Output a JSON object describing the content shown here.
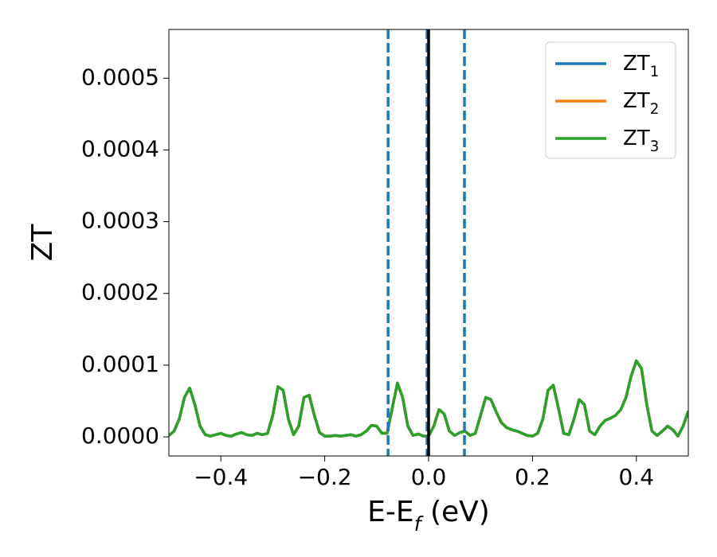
{
  "chart_data": {
    "type": "line",
    "xlabel": "E-Ef (eV)",
    "ylabel": "ZT",
    "xlim": [
      -0.5,
      0.5
    ],
    "ylim": [
      -2.66e-05,
      0.000568
    ],
    "xticks": [
      {
        "value": -0.4,
        "label": "−0.4"
      },
      {
        "value": -0.2,
        "label": "−0.2"
      },
      {
        "value": 0.0,
        "label": "0.0"
      },
      0.2,
      0.4
    ],
    "yticks": [
      {
        "value": 0,
        "label": "0.0000"
      },
      {
        "value": 0.0001,
        "label": "0.0001"
      },
      {
        "value": 0.0002,
        "label": "0.0002"
      },
      {
        "value": 0.0003,
        "label": "0.0003"
      },
      {
        "value": 0.0004,
        "label": "0.0004"
      },
      {
        "value": 0.0005,
        "label": "0.0005"
      }
    ],
    "legend": "upper right",
    "vlines": [
      {
        "x": -0.078,
        "color": "#1f77b4",
        "dashed": true
      },
      {
        "x": -0.003,
        "color": "#1f77b4",
        "dashed": true
      },
      {
        "x": 0.069,
        "color": "#1f77b4",
        "dashed": true
      },
      {
        "x": 0.0,
        "color": "#000000",
        "dashed": false
      }
    ],
    "x": [
      -0.5,
      -0.49,
      -0.48,
      -0.47,
      -0.46,
      -0.45,
      -0.44,
      -0.43,
      -0.42,
      -0.41,
      -0.4,
      -0.39,
      -0.38,
      -0.37,
      -0.36,
      -0.35,
      -0.34,
      -0.33,
      -0.32,
      -0.31,
      -0.3,
      -0.29,
      -0.28,
      -0.27,
      -0.26,
      -0.25,
      -0.24,
      -0.23,
      -0.22,
      -0.21,
      -0.2,
      -0.19,
      -0.18,
      -0.17,
      -0.16,
      -0.15,
      -0.14,
      -0.13,
      -0.12,
      -0.11,
      -0.1,
      -0.09,
      -0.08,
      -0.07,
      -0.06,
      -0.05,
      -0.04,
      -0.03,
      -0.02,
      -0.01,
      0,
      0.01,
      0.02,
      0.03,
      0.04,
      0.05,
      0.06,
      0.07,
      0.08,
      0.09,
      0.1,
      0.11,
      0.12,
      0.13,
      0.14,
      0.15,
      0.16,
      0.17,
      0.18,
      0.19,
      0.2,
      0.21,
      0.22,
      0.23,
      0.24,
      0.25,
      0.26,
      0.27,
      0.28,
      0.29,
      0.3,
      0.31,
      0.32,
      0.33,
      0.34,
      0.35,
      0.36,
      0.37,
      0.38,
      0.39,
      0.4,
      0.41,
      0.42,
      0.43,
      0.44,
      0.45,
      0.46,
      0.47,
      0.48,
      0.49,
      0.5
    ],
    "series": [
      {
        "name": "ZT1",
        "color": "#1f77b4",
        "values": [
          2e-06,
          8e-06,
          2.5e-05,
          5.5e-05,
          6.8e-05,
          4.5e-05,
          1.5e-05,
          3e-06,
          1e-06,
          3e-06,
          5e-06,
          2e-06,
          1e-06,
          4e-06,
          6e-06,
          3e-06,
          2e-06,
          5e-06,
          3e-06,
          5e-06,
          3e-05,
          7e-05,
          6.5e-05,
          2.5e-05,
          3e-06,
          1.5e-05,
          5.5e-05,
          5.8e-05,
          3e-05,
          6e-06,
          1e-06,
          1e-06,
          2e-06,
          1e-06,
          2e-06,
          3e-06,
          1e-06,
          3e-06,
          8e-06,
          1.6e-05,
          1.5e-05,
          5e-06,
          5e-06,
          4e-05,
          7.5e-05,
          5.5e-05,
          1.5e-05,
          2e-06,
          4e-06,
          1e-06,
          1e-06,
          1.5e-05,
          3.8e-05,
          3.2e-05,
          8e-06,
          2e-06,
          6e-06,
          8e-06,
          2e-06,
          5e-06,
          3e-05,
          5.5e-05,
          5.2e-05,
          3.5e-05,
          2e-05,
          1.3e-05,
          1e-05,
          8e-06,
          5e-06,
          2e-06,
          1e-06,
          5e-06,
          2.5e-05,
          6.5e-05,
          7.2e-05,
          4e-05,
          5e-06,
          3e-06,
          2.5e-05,
          5.2e-05,
          4.5e-05,
          8e-06,
          3e-06,
          1.5e-05,
          2.3e-05,
          2.6e-05,
          3e-05,
          3.8e-05,
          5.5e-05,
          8.5e-05,
          0.000106,
          9.5e-05,
          4.5e-05,
          8e-06,
          2e-06,
          8e-06,
          1.5e-05,
          1e-05,
          1e-06,
          1.5e-05,
          3.6e-05
        ]
      },
      {
        "name": "ZT2",
        "color": "#ff7f0e",
        "values": [
          2e-06,
          8e-06,
          2.5e-05,
          5.5e-05,
          6.8e-05,
          4.5e-05,
          1.5e-05,
          3e-06,
          1e-06,
          3e-06,
          5e-06,
          2e-06,
          1e-06,
          4e-06,
          6e-06,
          3e-06,
          2e-06,
          5e-06,
          3e-06,
          5e-06,
          3e-05,
          7e-05,
          6.5e-05,
          2.5e-05,
          3e-06,
          1.5e-05,
          5.5e-05,
          5.8e-05,
          3e-05,
          6e-06,
          1e-06,
          1e-06,
          2e-06,
          1e-06,
          2e-06,
          3e-06,
          1e-06,
          3e-06,
          8e-06,
          1.6e-05,
          1.5e-05,
          5e-06,
          5e-06,
          4e-05,
          7.5e-05,
          5.5e-05,
          1.5e-05,
          2e-06,
          4e-06,
          1e-06,
          1e-06,
          1.5e-05,
          3.8e-05,
          3.2e-05,
          8e-06,
          2e-06,
          6e-06,
          8e-06,
          2e-06,
          5e-06,
          3e-05,
          5.5e-05,
          5.2e-05,
          3.5e-05,
          2e-05,
          1.3e-05,
          1e-05,
          8e-06,
          5e-06,
          2e-06,
          1e-06,
          5e-06,
          2.5e-05,
          6.5e-05,
          7.2e-05,
          4e-05,
          5e-06,
          3e-06,
          2.5e-05,
          5.2e-05,
          4.5e-05,
          8e-06,
          3e-06,
          1.5e-05,
          2.3e-05,
          2.6e-05,
          3e-05,
          3.8e-05,
          5.5e-05,
          8.5e-05,
          0.000106,
          9.5e-05,
          4.5e-05,
          8e-06,
          2e-06,
          8e-06,
          1.5e-05,
          1e-05,
          1e-06,
          1.5e-05,
          3.6e-05
        ]
      },
      {
        "name": "ZT3",
        "color": "#2ca02c",
        "values": [
          2e-06,
          8e-06,
          2.5e-05,
          5.5e-05,
          6.8e-05,
          4.5e-05,
          1.5e-05,
          3e-06,
          1e-06,
          3e-06,
          5e-06,
          2e-06,
          1e-06,
          4e-06,
          6e-06,
          3e-06,
          2e-06,
          5e-06,
          3e-06,
          5e-06,
          3e-05,
          7e-05,
          6.5e-05,
          2.5e-05,
          3e-06,
          1.5e-05,
          5.5e-05,
          5.8e-05,
          3e-05,
          6e-06,
          1e-06,
          1e-06,
          2e-06,
          1e-06,
          2e-06,
          3e-06,
          1e-06,
          3e-06,
          8e-06,
          1.6e-05,
          1.5e-05,
          5e-06,
          5e-06,
          4e-05,
          7.5e-05,
          5.5e-05,
          1.5e-05,
          2e-06,
          4e-06,
          1e-06,
          1e-06,
          1.5e-05,
          3.8e-05,
          3.2e-05,
          8e-06,
          2e-06,
          6e-06,
          8e-06,
          2e-06,
          5e-06,
          3e-05,
          5.5e-05,
          5.2e-05,
          3.5e-05,
          2e-05,
          1.3e-05,
          1e-05,
          8e-06,
          5e-06,
          2e-06,
          1e-06,
          5e-06,
          2.5e-05,
          6.5e-05,
          7.2e-05,
          4e-05,
          5e-06,
          3e-06,
          2.5e-05,
          5.2e-05,
          4.5e-05,
          8e-06,
          3e-06,
          1.5e-05,
          2.3e-05,
          2.6e-05,
          3e-05,
          3.8e-05,
          5.5e-05,
          8.5e-05,
          0.000106,
          9.5e-05,
          4.5e-05,
          8e-06,
          2e-06,
          8e-06,
          1.5e-05,
          1e-05,
          1e-06,
          1.5e-05,
          3.6e-05
        ]
      }
    ]
  }
}
